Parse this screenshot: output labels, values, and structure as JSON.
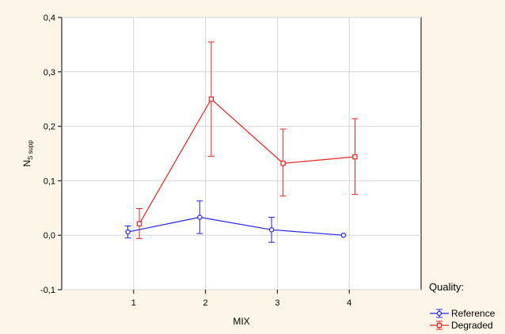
{
  "chart_data": {
    "type": "line",
    "categories": [
      "1",
      "2",
      "3",
      "4"
    ],
    "x": [
      1,
      2,
      3,
      4
    ],
    "xlabel": "MIX",
    "ylabel_main": "N",
    "ylabel_sub": "S supp",
    "ylim": [
      -0.1,
      0.4
    ],
    "xlim": [
      0,
      5
    ],
    "yticks": [
      "-0,1",
      "0,0",
      "0,1",
      "0,2",
      "0,3",
      "0,4"
    ],
    "ytick_values": [
      -0.1,
      0.0,
      0.1,
      0.2,
      0.3,
      0.4
    ],
    "grid": true,
    "legend_title": "Quality:",
    "legend_position": "bottom-right outside",
    "series": [
      {
        "name": "Reference",
        "color": "#2222ee",
        "marker": "circle",
        "values": [
          0.006,
          0.033,
          0.01,
          0.0
        ],
        "err_low": [
          -0.005,
          0.003,
          -0.013,
          0.0
        ],
        "err_high": [
          0.017,
          0.063,
          0.033,
          0.0
        ]
      },
      {
        "name": "Degraded",
        "color": "#ee2222",
        "marker": "square",
        "values": [
          0.021,
          0.25,
          0.132,
          0.144
        ],
        "err_low": [
          -0.006,
          0.145,
          0.072,
          0.075
        ],
        "err_high": [
          0.049,
          0.355,
          0.195,
          0.214
        ]
      }
    ]
  }
}
